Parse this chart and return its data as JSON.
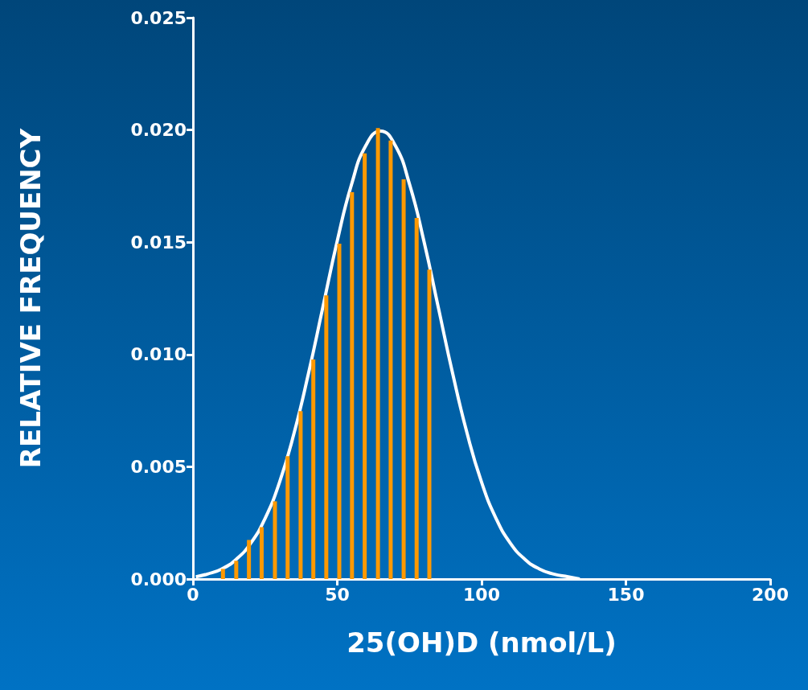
{
  "chart_data": {
    "type": "bar",
    "xlabel": "25(OH)D (nmol/L)",
    "ylabel": "RELATIVE FREQUENCY",
    "xlim": [
      0,
      200
    ],
    "xticks": [
      0,
      50,
      100,
      150,
      200
    ],
    "ylim": [
      0,
      0.025
    ],
    "yticks": [
      {
        "value": 0,
        "label": "0.000"
      },
      {
        "value": 0.005,
        "label": "0.005"
      },
      {
        "value": 0.01,
        "label": "0.010"
      },
      {
        "value": 0.015,
        "label": "0.015"
      },
      {
        "value": 0.02,
        "label": "0.020"
      },
      {
        "value": 0.025,
        "label": "0.025"
      }
    ],
    "series": [
      {
        "color": "#ff9900",
        "x": [
          10.4,
          15.0,
          19.4,
          23.8,
          28.4,
          32.8,
          37.3,
          41.7,
          46.2,
          50.7,
          55.1,
          59.5,
          64.1,
          68.5,
          73.0,
          77.5,
          81.9
        ],
        "values": [
          0.00045,
          0.00081,
          0.00174,
          0.00231,
          0.00346,
          0.00547,
          0.00748,
          0.00978,
          0.01263,
          0.01494,
          0.01723,
          0.01896,
          0.02008,
          0.01953,
          0.0178,
          0.01608,
          0.01378
        ]
      },
      {
        "type": "line",
        "color": "#ffffff",
        "x": [
          1,
          5,
          10,
          15,
          20,
          25,
          30,
          35,
          40,
          45,
          50,
          55,
          60,
          65,
          70,
          75,
          80,
          85,
          90,
          95,
          100,
          105,
          110,
          115,
          120,
          125,
          130,
          134
        ],
        "values": [
          0.0001,
          0.00022,
          0.00045,
          0.00088,
          0.00159,
          0.0027,
          0.00431,
          0.00648,
          0.00914,
          0.0121,
          0.01506,
          0.0176,
          0.01933,
          0.01995,
          0.01933,
          0.0176,
          0.01506,
          0.0121,
          0.00914,
          0.00648,
          0.00431,
          0.0027,
          0.00159,
          0.00088,
          0.00045,
          0.00022,
          0.0001,
          0.0
        ]
      }
    ]
  }
}
